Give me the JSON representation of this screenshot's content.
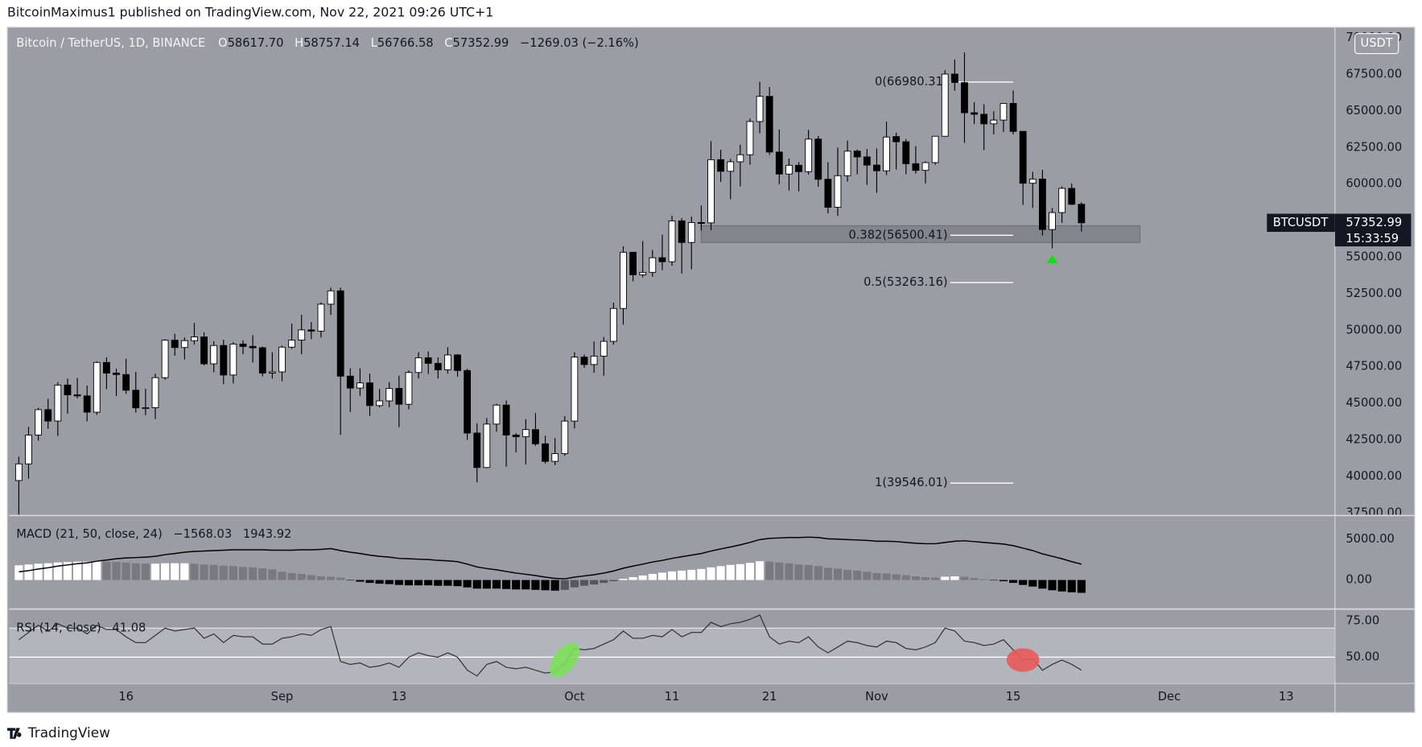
{
  "header": {
    "publisher": "BitcoinMaximus1 published on TradingView.com, Nov 22, 2021 09:26 UTC+1"
  },
  "footer": {
    "brand": "TradingView"
  },
  "chart_data": {
    "type": "candlestick",
    "title": "Bitcoin / TetherUS, 1D, BINANCE",
    "ohlc_readout": [
      {
        "key": "O",
        "text": "58617.70"
      },
      {
        "key": "H",
        "text": "58757.14"
      },
      {
        "key": "L",
        "text": "56766.58"
      },
      {
        "key": "C",
        "text": "57352.99"
      }
    ],
    "change": "−1269.03 (−2.16%)",
    "currency": "USDT",
    "symbol": "BTCUSDT",
    "last_price": "57352.99",
    "countdown": "15:33:59",
    "colors": {
      "up": "#ffffff",
      "down": "#000000",
      "wick": "#000000",
      "background": "#9b9da5"
    },
    "grid": false,
    "x": [
      "2021-08-05",
      "2021-08-06",
      "2021-08-07",
      "2021-08-08",
      "2021-08-09",
      "2021-08-10",
      "2021-08-11",
      "2021-08-12",
      "2021-08-13",
      "2021-08-14",
      "2021-08-15",
      "2021-08-16",
      "2021-08-17",
      "2021-08-18",
      "2021-08-19",
      "2021-08-20",
      "2021-08-21",
      "2021-08-22",
      "2021-08-23",
      "2021-08-24",
      "2021-08-25",
      "2021-08-26",
      "2021-08-27",
      "2021-08-28",
      "2021-08-29",
      "2021-08-30",
      "2021-08-31",
      "2021-09-01",
      "2021-09-02",
      "2021-09-03",
      "2021-09-04",
      "2021-09-05",
      "2021-09-06",
      "2021-09-07",
      "2021-09-08",
      "2021-09-09",
      "2021-09-10",
      "2021-09-11",
      "2021-09-12",
      "2021-09-13",
      "2021-09-14",
      "2021-09-15",
      "2021-09-16",
      "2021-09-17",
      "2021-09-18",
      "2021-09-19",
      "2021-09-20",
      "2021-09-21",
      "2021-09-22",
      "2021-09-23",
      "2021-09-24",
      "2021-09-25",
      "2021-09-26",
      "2021-09-27",
      "2021-09-28",
      "2021-09-29",
      "2021-09-30",
      "2021-10-01",
      "2021-10-02",
      "2021-10-03",
      "2021-10-04",
      "2021-10-05",
      "2021-10-06",
      "2021-10-07",
      "2021-10-08",
      "2021-10-09",
      "2021-10-10",
      "2021-10-11",
      "2021-10-12",
      "2021-10-13",
      "2021-10-14",
      "2021-10-15",
      "2021-10-16",
      "2021-10-17",
      "2021-10-18",
      "2021-10-19",
      "2021-10-20",
      "2021-10-21",
      "2021-10-22",
      "2021-10-23",
      "2021-10-24",
      "2021-10-25",
      "2021-10-26",
      "2021-10-27",
      "2021-10-28",
      "2021-10-29",
      "2021-10-30",
      "2021-10-31",
      "2021-11-01",
      "2021-11-02",
      "2021-11-03",
      "2021-11-04",
      "2021-11-05",
      "2021-11-06",
      "2021-11-07",
      "2021-11-08",
      "2021-11-09",
      "2021-11-10",
      "2021-11-11",
      "2021-11-12",
      "2021-11-13",
      "2021-11-14",
      "2021-11-15",
      "2021-11-16",
      "2021-11-17",
      "2021-11-18",
      "2021-11-19",
      "2021-11-20",
      "2021-11-21",
      "2021-11-22"
    ],
    "open": [
      39723,
      40862,
      42836,
      44572,
      43794,
      46253,
      45584,
      45511,
      44399,
      47800,
      47069,
      46974,
      45901,
      44695,
      44705,
      46760,
      49323,
      48821,
      49292,
      49546,
      47706,
      48960,
      46942,
      49058,
      48897,
      48806,
      47074,
      47155,
      48847,
      49327,
      50025,
      49944,
      51786,
      52698,
      46864,
      46049,
      46401,
      44851,
      45171,
      46026,
      44940,
      47111,
      48121,
      47738,
      47299,
      48314,
      47249,
      42970,
      40614,
      43584,
      44884,
      42836,
      42716,
      43208,
      42235,
      41035,
      41564,
      43791,
      48165,
      47657,
      48233,
      49245,
      51493,
      55339,
      53797,
      53963,
      54963,
      54690,
      57485,
      56006,
      57372,
      57347,
      61672,
      60875,
      61528,
      62010,
      64280,
      66001,
      62193,
      60688,
      61286,
      60852,
      63078,
      60328,
      58413,
      60575,
      62253,
      61859,
      61299,
      60911,
      63254,
      62896,
      61395,
      60940,
      61470,
      63273,
      67525,
      66940,
      64883,
      64775,
      64122,
      64380,
      65519,
      63606,
      60059,
      60345,
      56892,
      58052,
      59708,
      58617.7
    ],
    "high": [
      41350,
      43392,
      44700,
      45310,
      46454,
      46700,
      46743,
      46218,
      47886,
      48144,
      47372,
      48053,
      47160,
      46000,
      47033,
      49382,
      49757,
      49500,
      50500,
      49860,
      49250,
      49358,
      49185,
      49309,
      49667,
      48888,
      48504,
      48950,
      50450,
      51054,
      50558,
      51900,
      52920,
      52920,
      47399,
      47400,
      47033,
      45989,
      46460,
      46900,
      47250,
      48500,
      48557,
      48150,
      48843,
      48372,
      47355,
      43639,
      44000,
      44978,
      45200,
      42966,
      43919,
      44350,
      42787,
      42625,
      44132,
      48495,
      48336,
      49228,
      49530,
      51886,
      55750,
      55339,
      56100,
      55489,
      56545,
      57839,
      57680,
      57777,
      58532,
      62933,
      62350,
      61720,
      62695,
      64486,
      67000,
      66639,
      63732,
      61747,
      61500,
      63710,
      63293,
      61496,
      62499,
      62980,
      62359,
      62405,
      62437,
      64270,
      63516,
      63086,
      62595,
      61560,
      63286,
      67789,
      68524,
      69000,
      65600,
      65460,
      64990,
      65550,
      66401,
      63617,
      60840,
      60976,
      58372,
      59845,
      60050,
      58757.14
    ],
    "low": [
      37332,
      39853,
      42446,
      43261,
      42779,
      44300,
      45341,
      43770,
      44217,
      45971,
      45500,
      45660,
      44376,
      44203,
      43928,
      46622,
      48263,
      48000,
      49029,
      47600,
      47126,
      46315,
      46363,
      48370,
      47800,
      46853,
      46700,
      46512,
      48725,
      48361,
      49400,
      49500,
      51056,
      42843,
      44412,
      45513,
      44132,
      44730,
      44742,
      43370,
      44594,
      46705,
      47021,
      46699,
      47033,
      46829,
      42500,
      39600,
      40566,
      43062,
      40675,
      41646,
      40829,
      42098,
      40888,
      40781,
      41410,
      43283,
      47430,
      47088,
      46891,
      49022,
      50382,
      53357,
      53617,
      53661,
      54112,
      54415,
      53879,
      54167,
      56818,
      56850,
      60150,
      58963,
      59844,
      61322,
      63481,
      62000,
      60000,
      59562,
      59510,
      60650,
      59817,
      58000,
      57820,
      60174,
      60673,
      59945,
      59405,
      60624,
      61000,
      60677,
      60721,
      60050,
      61322,
      63273,
      66382,
      62822,
      64100,
      62333,
      63400,
      63576,
      63400,
      58574,
      58373,
      56474,
      55600,
      57353,
      58555,
      56766.58
    ],
    "close": [
      40862,
      42836,
      44572,
      43794,
      46253,
      45584,
      45511,
      44399,
      47800,
      47069,
      46974,
      45901,
      44695,
      44705,
      46760,
      49323,
      48821,
      49292,
      49546,
      47706,
      48960,
      46942,
      49058,
      48897,
      48806,
      47074,
      47155,
      48847,
      49327,
      50025,
      49944,
      51786,
      52698,
      46864,
      46049,
      46401,
      44851,
      45171,
      46026,
      44940,
      47111,
      48121,
      47738,
      47299,
      48314,
      47249,
      42970,
      40614,
      43584,
      44884,
      42836,
      42716,
      43208,
      42235,
      41035,
      41564,
      43791,
      48165,
      47657,
      48233,
      49245,
      51493,
      55339,
      53797,
      53963,
      54963,
      54690,
      57485,
      56006,
      57372,
      57347,
      61672,
      60875,
      61528,
      62010,
      64280,
      66001,
      62193,
      60688,
      61286,
      60852,
      63078,
      60328,
      58413,
      60575,
      62253,
      61859,
      61299,
      60911,
      63219,
      62896,
      61395,
      60937,
      61470,
      63273,
      67525,
      66947,
      64882,
      64774,
      64122,
      64380,
      65519,
      63606,
      60058,
      60344,
      56892,
      58052,
      59708,
      58622,
      57352.99
    ],
    "xlim": [
      "2021-08-04",
      "2021-12-18"
    ],
    "xticks": [
      {
        "value": "2021-08-16",
        "label": "16"
      },
      {
        "value": "2021-09-01",
        "label": "Sep"
      },
      {
        "value": "2021-09-13",
        "label": "13"
      },
      {
        "value": "2021-10-01",
        "label": "Oct"
      },
      {
        "value": "2021-10-11",
        "label": "11"
      },
      {
        "value": "2021-10-21",
        "label": "21"
      },
      {
        "value": "2021-11-01",
        "label": "Nov"
      },
      {
        "value": "2021-11-15",
        "label": "15"
      },
      {
        "value": "2021-12-01",
        "label": "Dec"
      },
      {
        "value": "2021-12-13",
        "label": "13"
      }
    ],
    "ylim": [
      37390,
      70730
    ],
    "yticks": [
      {
        "value": 37500,
        "label": "37500.00"
      },
      {
        "value": 40000,
        "label": "40000.00"
      },
      {
        "value": 42500,
        "label": "42500.00"
      },
      {
        "value": 45000,
        "label": "45000.00"
      },
      {
        "value": 47500,
        "label": "47500.00"
      },
      {
        "value": 50000,
        "label": "50000.00"
      },
      {
        "value": 52500,
        "label": "52500.00"
      },
      {
        "value": 55000,
        "label": "55000.00"
      },
      {
        "value": 57500,
        "label": "57500.00"
      },
      {
        "value": 60000,
        "label": "60000.00"
      },
      {
        "value": 62500,
        "label": "62500.00"
      },
      {
        "value": 65000,
        "label": "65000.00"
      },
      {
        "value": 67500,
        "label": "67500.00"
      },
      {
        "value": 70000,
        "label": "70000.00"
      }
    ],
    "fib": {
      "x": [
        "2021-11-08",
        "2021-11-15"
      ],
      "levels": [
        {
          "value": 66980.31,
          "label": "0(66980.31)"
        },
        {
          "value": 56500.41,
          "label": "0.382(56500.41)"
        },
        {
          "value": 53263.16,
          "label": "0.5(53263.16)"
        },
        {
          "value": 39546.01,
          "label": "1(39546.01)"
        }
      ],
      "color": "#ffffff"
    },
    "zone": {
      "x": [
        "2021-10-14",
        "2021-11-28"
      ],
      "y": [
        56000,
        57150
      ],
      "color": "#7b7e85"
    },
    "signal": {
      "x": "2021-11-19",
      "y": 54840,
      "color": "#00e600"
    },
    "macd": {
      "title": "MACD (21, 50, close, 24)",
      "readout": [
        "−1568.03",
        "1943.92"
      ],
      "line_color": "#000000",
      "bar_colors": {
        "pos_up": "#ffffff",
        "pos_down": "#787a80",
        "neg_down": "#000000",
        "neg_up": "#55575c"
      },
      "ylim": [
        -3440,
        7780
      ],
      "yticks": [
        {
          "value": 5000,
          "label": "5000.00"
        },
        {
          "value": 0,
          "label": "0.00"
        }
      ],
      "histogram": [
        1800,
        1900,
        2000,
        2050,
        2150,
        2200,
        2250,
        2250,
        2300,
        2250,
        2200,
        2150,
        2050,
        2000,
        2000,
        2050,
        2050,
        2050,
        2000,
        1900,
        1850,
        1750,
        1700,
        1600,
        1550,
        1450,
        1300,
        1000,
        850,
        750,
        600,
        450,
        400,
        300,
        -50,
        -200,
        -350,
        -450,
        -500,
        -600,
        -650,
        -650,
        -650,
        -700,
        -700,
        -750,
        -900,
        -1050,
        -1050,
        -1050,
        -1100,
        -1150,
        -1150,
        -1200,
        -1250,
        -1300,
        -1200,
        -900,
        -700,
        -550,
        -350,
        -150,
        150,
        350,
        550,
        750,
        900,
        1050,
        1150,
        1250,
        1350,
        1550,
        1700,
        1850,
        1950,
        2100,
        2300,
        2250,
        2150,
        2050,
        1900,
        1850,
        1700,
        1500,
        1400,
        1250,
        1150,
        1000,
        850,
        800,
        700,
        600,
        450,
        350,
        300,
        400,
        450,
        400,
        250,
        100,
        -50,
        -150,
        -350,
        -600,
        -800,
        -1050,
        -1250,
        -1400,
        -1500,
        -1568.03
      ],
      "line": [
        1000,
        1150,
        1350,
        1500,
        1700,
        1850,
        2000,
        2100,
        2300,
        2450,
        2600,
        2700,
        2750,
        2800,
        2900,
        3100,
        3250,
        3400,
        3500,
        3550,
        3600,
        3650,
        3700,
        3700,
        3700,
        3700,
        3650,
        3650,
        3650,
        3700,
        3700,
        3750,
        3850,
        3600,
        3400,
        3250,
        3050,
        2900,
        2800,
        2650,
        2600,
        2550,
        2500,
        2400,
        2350,
        2250,
        1950,
        1600,
        1400,
        1250,
        1050,
        850,
        700,
        550,
        350,
        200,
        150,
        350,
        500,
        650,
        850,
        1100,
        1450,
        1700,
        1950,
        2200,
        2400,
        2650,
        2850,
        3050,
        3250,
        3550,
        3800,
        4050,
        4300,
        4600,
        4950,
        5100,
        5150,
        5200,
        5200,
        5250,
        5200,
        5050,
        5000,
        4950,
        4900,
        4850,
        4750,
        4750,
        4700,
        4600,
        4500,
        4450,
        4450,
        4600,
        4750,
        4800,
        4700,
        4600,
        4500,
        4400,
        4200,
        3900,
        3600,
        3200,
        2900,
        2600,
        2250,
        1943.92
      ]
    },
    "rsi": {
      "title": "RSI (14, close)",
      "readout": "41.08",
      "line_color": "#2a2a2a",
      "band": [
        30,
        70
      ],
      "band_color": "#b3b5bc",
      "midline": 50,
      "ylim": [
        32.5,
        82.5
      ],
      "yticks": [
        {
          "value": 75,
          "label": "75.00"
        },
        {
          "value": 50,
          "label": "50.00"
        }
      ],
      "values": [
        62,
        67,
        72,
        68,
        73,
        70,
        70,
        66,
        72,
        69,
        69,
        64,
        60,
        60,
        65,
        70,
        68,
        69,
        70,
        63,
        66,
        60,
        65,
        64,
        64,
        59,
        59,
        63,
        64,
        66,
        65,
        69,
        71,
        47,
        45,
        46,
        43,
        44,
        46,
        43,
        50,
        53,
        51,
        50,
        53,
        50,
        41,
        37,
        45,
        47,
        43,
        42,
        43,
        41,
        39,
        40,
        46,
        56,
        55,
        56,
        59,
        62,
        68,
        63,
        63,
        65,
        64,
        69,
        64,
        67,
        67,
        74,
        71,
        73,
        74,
        76,
        79,
        64,
        59,
        61,
        60,
        64,
        57,
        53,
        57,
        61,
        60,
        58,
        57,
        61,
        60,
        56,
        55,
        57,
        60,
        70,
        68,
        61,
        60,
        58,
        59,
        62,
        55,
        48,
        49,
        41,
        45,
        48,
        45,
        41.08
      ],
      "highlights": [
        {
          "x": "2021-09-30",
          "y": 48,
          "color": "#7ce05a"
        },
        {
          "x": "2021-11-16",
          "y": 48,
          "color": "#e85a5a"
        }
      ]
    }
  }
}
